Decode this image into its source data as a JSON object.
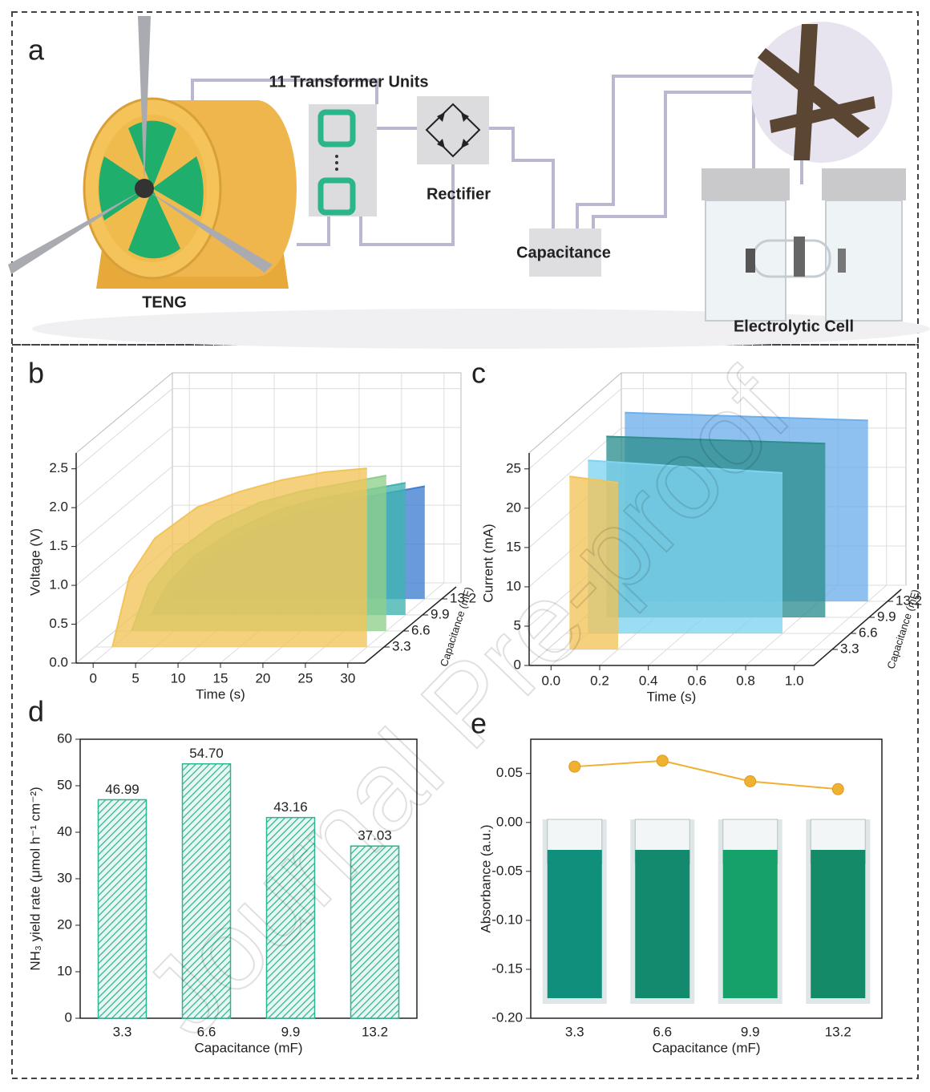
{
  "figure": {
    "panel_labels": [
      "a",
      "b",
      "c",
      "d",
      "e"
    ],
    "watermark": "Journal Pre-proof"
  },
  "diagram": {
    "labels": {
      "transformer": "11 Transformer Units",
      "rectifier": "Rectifier",
      "capacitance": "Capacitance",
      "teng": "TENG",
      "cell": "Electrolytic Cell"
    }
  },
  "chart_data": [
    {
      "type": "area3d",
      "xlabel": "Time (s)",
      "ylabel": "Voltage (V)",
      "zlabel": "Capacitance (mF)",
      "x": [
        0,
        2,
        5,
        10,
        15,
        20,
        25,
        30
      ],
      "xlim": [
        -2,
        32
      ],
      "xticks": [
        0,
        5,
        10,
        15,
        20,
        25,
        30
      ],
      "ylim": [
        0,
        2.6
      ],
      "yticks": [
        {
          "value": 0,
          "label": "0.0"
        },
        0.5,
        {
          "value": 1,
          "label": "1.0"
        },
        1.5,
        {
          "value": 2,
          "label": "2.0"
        },
        2.5
      ],
      "zlim": [
        0,
        16.5
      ],
      "zticks": [
        3.3,
        6.6,
        9.9,
        13.2
      ],
      "grid": true,
      "series": [
        {
          "z": 3.3,
          "color": "#f2c45a",
          "values": [
            0,
            0.9,
            1.4,
            1.8,
            2.0,
            2.15,
            2.25,
            2.3
          ]
        },
        {
          "z": 6.6,
          "color": "#8fcf8c",
          "values": [
            0,
            0.6,
            1.0,
            1.4,
            1.65,
            1.8,
            1.9,
            2.0
          ]
        },
        {
          "z": 9.9,
          "color": "#3fb3b0",
          "values": [
            0,
            0.4,
            0.75,
            1.1,
            1.35,
            1.5,
            1.6,
            1.7
          ]
        },
        {
          "z": 13.2,
          "color": "#3f7fd0",
          "values": [
            0,
            0.3,
            0.6,
            0.9,
            1.1,
            1.25,
            1.35,
            1.45
          ]
        }
      ]
    },
    {
      "type": "area3d",
      "xlabel": "Time (s)",
      "ylabel": "Current (mA)",
      "zlabel": "Capacitance (mF)",
      "x": [
        0,
        0.1,
        0.2,
        0.3,
        0.4,
        0.5,
        0.6,
        0.7,
        0.8,
        0.9,
        1.0
      ],
      "xlim": [
        -0.09,
        1.08
      ],
      "xticks": [
        {
          "value": 0,
          "label": "0.0"
        },
        0.2,
        0.4,
        0.6,
        0.8,
        {
          "value": 1,
          "label": "1.0"
        }
      ],
      "ylim": [
        0,
        26
      ],
      "yticks": [
        0,
        5,
        10,
        15,
        20,
        25
      ],
      "zlim": [
        0,
        16.5
      ],
      "zticks": [
        3.3,
        6.6,
        9.9,
        13.2
      ],
      "grid": true,
      "series": [
        {
          "z": 3.3,
          "color": "#f2c45a",
          "values": [
            22,
            21.6,
            21.2,
            null,
            null,
            null,
            null,
            null,
            null,
            null,
            null
          ]
        },
        {
          "z": 6.6,
          "color": "#7fd3f0",
          "values": [
            22,
            21.8,
            21.6,
            21.4,
            21.2,
            21,
            20.8,
            20.6,
            20.4,
            null,
            null
          ]
        },
        {
          "z": 9.9,
          "color": "#2e8f8f",
          "values": [
            23,
            22.9,
            22.8,
            22.7,
            22.6,
            22.5,
            22.4,
            22.3,
            22.2,
            22.1,
            null
          ]
        },
        {
          "z": 13.2,
          "color": "#6fb0ec",
          "values": [
            24,
            23.9,
            23.8,
            23.7,
            23.6,
            23.5,
            23.4,
            23.3,
            23.2,
            23.1,
            23
          ]
        }
      ]
    },
    {
      "type": "bar",
      "xlabel": "Capacitance (mF)",
      "ylabel": "NH₃ yield rate (μmol h⁻¹ cm⁻²)",
      "categories": [
        "3.3",
        "6.6",
        "9.9",
        "13.2"
      ],
      "values": [
        46.99,
        54.7,
        43.16,
        37.03
      ],
      "value_labels": [
        "46.99",
        "54.70",
        "43.16",
        "37.03"
      ],
      "color": "#2bb593",
      "ylim": [
        0,
        60
      ],
      "yticks": [
        0,
        10,
        20,
        30,
        40,
        50,
        60
      ]
    },
    {
      "type": "line",
      "xlabel": "Capacitance (mF)",
      "ylabel": "Absorbance (a.u.)",
      "categories": [
        "3.3",
        "6.6",
        "9.9",
        "13.2"
      ],
      "values": [
        0.057,
        0.063,
        0.042,
        0.034
      ],
      "color": "#f0b030",
      "ylim": [
        -0.2,
        0.085
      ],
      "yticks": [
        {
          "value": -0.2,
          "label": "-0.20"
        },
        -0.15,
        {
          "value": -0.1,
          "label": "-0.10"
        },
        -0.05,
        {
          "value": 0,
          "label": "0.00"
        },
        0.05
      ]
    }
  ]
}
